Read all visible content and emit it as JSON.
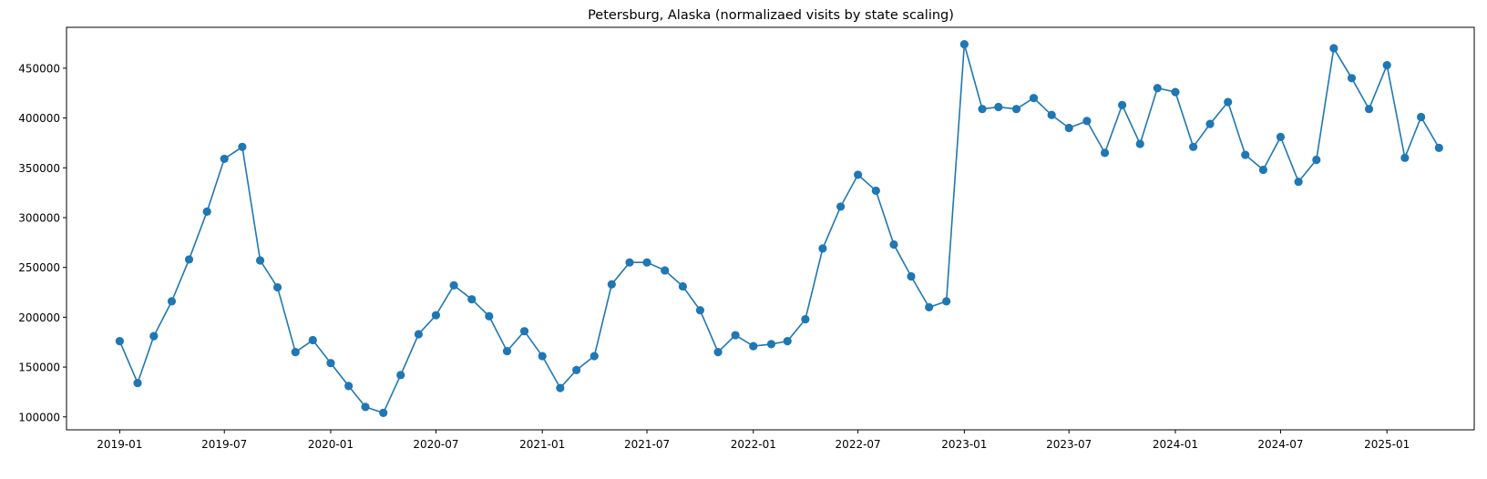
{
  "chart_data": {
    "type": "line",
    "title": "Petersburg, Alaska (normalizaed visits by state scaling)",
    "xlabel": "",
    "ylabel": "",
    "grid": false,
    "marker": "circle",
    "color": "#1f77b4",
    "xlim": [
      "2018-10-01",
      "2025-06-01"
    ],
    "ylim": [
      87000,
      491000
    ],
    "x_ticks": [
      "2019-01",
      "2019-07",
      "2020-01",
      "2020-07",
      "2021-01",
      "2021-07",
      "2022-01",
      "2022-07",
      "2023-01",
      "2023-07",
      "2024-01",
      "2024-07",
      "2025-01"
    ],
    "y_ticks": [
      100000,
      150000,
      200000,
      250000,
      300000,
      350000,
      400000,
      450000
    ],
    "x": [
      "2019-01",
      "2019-02",
      "2019-03",
      "2019-04",
      "2019-05",
      "2019-06",
      "2019-07",
      "2019-08",
      "2019-09",
      "2019-10",
      "2019-11",
      "2019-12",
      "2020-01",
      "2020-02",
      "2020-03",
      "2020-04",
      "2020-05",
      "2020-06",
      "2020-07",
      "2020-08",
      "2020-09",
      "2020-10",
      "2020-11",
      "2020-12",
      "2021-01",
      "2021-02",
      "2021-03",
      "2021-04",
      "2021-05",
      "2021-06",
      "2021-07",
      "2021-08",
      "2021-09",
      "2021-10",
      "2021-11",
      "2021-12",
      "2022-01",
      "2022-02",
      "2022-03",
      "2022-04",
      "2022-05",
      "2022-06",
      "2022-07",
      "2022-08",
      "2022-09",
      "2022-10",
      "2022-11",
      "2022-12",
      "2023-01",
      "2023-02",
      "2023-03",
      "2023-04",
      "2023-05",
      "2023-06",
      "2023-07",
      "2023-08",
      "2023-09",
      "2023-10",
      "2023-11",
      "2023-12",
      "2024-01",
      "2024-02",
      "2024-03",
      "2024-04",
      "2024-05",
      "2024-06",
      "2024-07",
      "2024-08",
      "2024-09",
      "2024-10",
      "2024-11",
      "2024-12",
      "2025-01",
      "2025-02",
      "2025-03",
      "2025-04"
    ],
    "values": [
      176000,
      134000,
      181000,
      216000,
      258000,
      306000,
      359000,
      371000,
      257000,
      230000,
      165000,
      177000,
      154000,
      131000,
      110000,
      104000,
      142000,
      183000,
      202000,
      232000,
      218000,
      201000,
      166000,
      186000,
      161000,
      129000,
      147000,
      161000,
      233000,
      255000,
      255000,
      247000,
      231000,
      207000,
      165000,
      182000,
      171000,
      173000,
      176000,
      198000,
      269000,
      311000,
      343000,
      327000,
      273000,
      241000,
      210000,
      216000,
      474000,
      409000,
      411000,
      409000,
      420000,
      403000,
      390000,
      397000,
      365000,
      413000,
      374000,
      430000,
      426000,
      371000,
      394000,
      416000,
      363000,
      348000,
      381000,
      336000,
      358000,
      470000,
      440000,
      409000,
      453000,
      360000,
      401000,
      370000
    ]
  }
}
